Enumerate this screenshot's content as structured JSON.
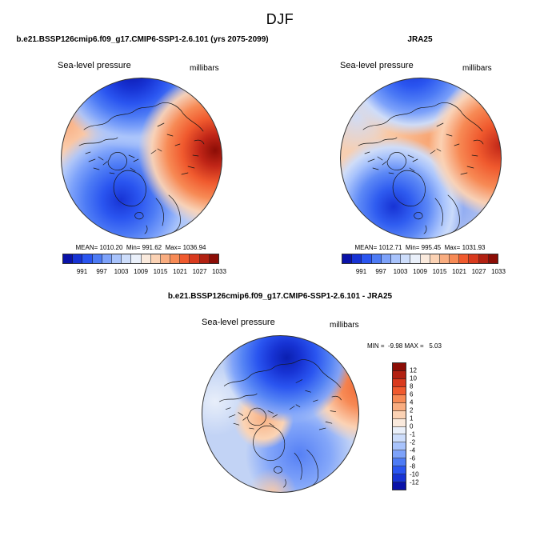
{
  "figure": {
    "title": "DJF"
  },
  "panels": {
    "model": {
      "header": "b.e21.BSSP126cmip6.f09_g17.CMIP6-SSP1-2.6.101 (yrs 2075-2099)",
      "field_label": "Sea-level pressure",
      "units_label": "millibars",
      "stats_line": "MEAN= 1010.20  Min= 991.62  Max= 1036.94"
    },
    "reference": {
      "header": "JRA25",
      "field_label": "Sea-level pressure",
      "units_label": "millibars",
      "stats_line": "MEAN= 1012.71  Min= 995.45  Max= 1031.93"
    },
    "difference": {
      "header": "b.e21.BSSP126cmip6.f09_g17.CMIP6-SSP1-2.6.101 - JRA25",
      "field_label": "Sea-level pressure",
      "units_label": "millibars",
      "minmax_line": "MIN =  -9.98 MAX =   5.03"
    }
  },
  "colorbar_pressure": {
    "tick_labels": [
      "991",
      "997",
      "1003",
      "1009",
      "1015",
      "1021",
      "1027",
      "1033"
    ],
    "colors_blue_to_red": [
      "#0a12a8",
      "#1733d4",
      "#2a55f0",
      "#4d7bf5",
      "#7da2fa",
      "#a8c3fc",
      "#cdddfb",
      "#eaf0fa",
      "#faeadd",
      "#fbd2b4",
      "#f9ad80",
      "#f78a55",
      "#f05a2e",
      "#d93a1e",
      "#b22112",
      "#8c0d06"
    ]
  },
  "colorbar_difference": {
    "tick_labels_top_to_bottom": [
      "12",
      "10",
      "8",
      "6",
      "4",
      "2",
      "1",
      "0",
      "-1",
      "-2",
      "-4",
      "-6",
      "-8",
      "-10",
      "-12"
    ],
    "colors_top_to_bottom": [
      "#8c0d06",
      "#b22112",
      "#d93a1e",
      "#f05a2e",
      "#f78a55",
      "#f9ad80",
      "#fbd2b4",
      "#faeadd",
      "#eaf0fa",
      "#cdddfb",
      "#a8c3fc",
      "#7da2fa",
      "#4d7bf5",
      "#2a55f0",
      "#1733d4",
      "#0a12a8"
    ]
  },
  "chart_data": [
    {
      "type": "heatmap",
      "subtype": "filled-contour-polar-map",
      "projection": "north-polar-stereographic",
      "title": "b.e21.BSSP126cmip6.f09_g17.CMIP6-SSP1-2.6.101 (yrs 2075-2099)",
      "season": "DJF",
      "variable": "Sea-level pressure",
      "units": "millibars",
      "mean": 1010.2,
      "min": 991.62,
      "max": 1036.94,
      "contour_bin_width": 3,
      "labeled_levels": [
        991,
        997,
        1003,
        1009,
        1015,
        1021,
        1027,
        1033
      ],
      "palette": "16-step blue-to-red diverging",
      "legend_position": "below",
      "pattern_summary": "deep low (blue) over central Arctic and Greenland/Canada sector, strong high (dark red) along right limb, orange upper-left limb"
    },
    {
      "type": "heatmap",
      "subtype": "filled-contour-polar-map",
      "projection": "north-polar-stereographic",
      "title": "JRA25",
      "season": "DJF",
      "variable": "Sea-level pressure",
      "units": "millibars",
      "mean": 1012.71,
      "min": 995.45,
      "max": 1031.93,
      "contour_bin_width": 3,
      "labeled_levels": [
        991,
        997,
        1003,
        1009,
        1015,
        1021,
        1027,
        1033
      ],
      "palette": "16-step blue-to-red diverging",
      "legend_position": "below",
      "pattern_summary": "blue lobe at top, orange over central Arctic interior, strong low (dark blue) southwest of Greenland, red band along right limb"
    },
    {
      "type": "heatmap",
      "subtype": "filled-contour-polar-map",
      "projection": "north-polar-stereographic",
      "title": "b.e21.BSSP126cmip6.f09_g17.CMIP6-SSP1-2.6.101 - JRA25",
      "season": "DJF",
      "variable": "Sea-level pressure",
      "units": "millibars",
      "min": -9.98,
      "max": 5.03,
      "labeled_levels": [
        12,
        10,
        8,
        6,
        4,
        2,
        1,
        0,
        -1,
        -2,
        -4,
        -6,
        -8,
        -10,
        -12
      ],
      "palette": "16-step red-to-blue diverging (vertical bar, red at top)",
      "legend_position": "right",
      "pattern_summary": "negative (blue) difference over most of Arctic with dark-blue core near pole, weak positive (orange) over Greenland and right limb"
    }
  ]
}
